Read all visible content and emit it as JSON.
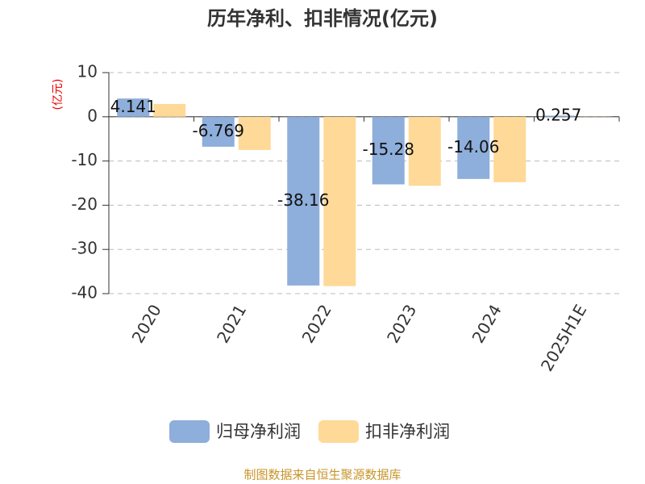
{
  "chart_data": {
    "type": "bar",
    "title": "历年净利、扣非情况(亿元)",
    "y_label": "(亿元)",
    "source": "制图数据来自恒生聚源数据库",
    "categories": [
      "2020",
      "2021",
      "2022",
      "2023",
      "2024",
      "2025H1E"
    ],
    "series": [
      {
        "name": "归母净利润",
        "color": "#8eaedb",
        "values": [
          4.141,
          -6.769,
          -38.16,
          -15.28,
          -14.06,
          0.257
        ]
      },
      {
        "name": "扣非净利润",
        "color": "#fed997",
        "values": [
          2.9,
          -7.5,
          -38.3,
          -15.6,
          -14.8,
          0.05
        ]
      }
    ],
    "ylim": [
      -40,
      10
    ],
    "yticks": [
      -40,
      -30,
      -20,
      -10,
      0,
      10
    ],
    "grid": true
  }
}
